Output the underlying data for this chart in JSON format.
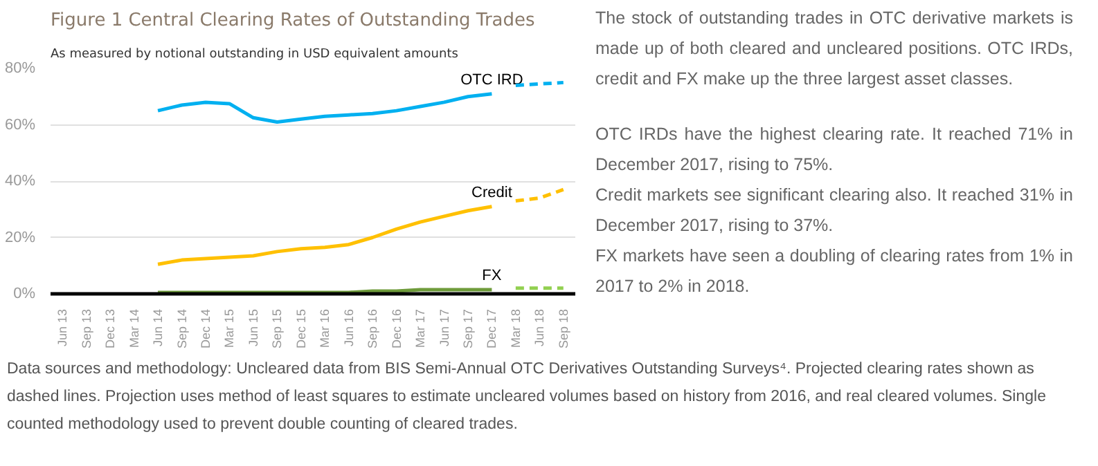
{
  "chart_data": {
    "type": "line",
    "title": "Figure 1 Central Clearing Rates of Outstanding Trades",
    "subtitle": "As measured by notional outstanding in USD equivalent amounts",
    "categories": [
      "Jun 13",
      "Sep 13",
      "Dec 13",
      "Mar 14",
      "Jun 14",
      "Sep 14",
      "Dec 14",
      "Mar 15",
      "Jun 15",
      "Sep 15",
      "Dec 15",
      "Mar 16",
      "Jun 16",
      "Sep 16",
      "Dec 16",
      "Mar 17",
      "Jun 17",
      "Sep 17",
      "Dec 17",
      "Mar 18",
      "Jun 18",
      "Sep 18"
    ],
    "series": [
      {
        "name": "OTC IRD",
        "color": "#00b0f0",
        "line_style": "solid",
        "values": [
          null,
          null,
          null,
          null,
          65,
          67,
          68,
          67.5,
          62.5,
          61,
          62,
          63,
          63.5,
          64,
          65,
          66.5,
          68,
          70,
          71,
          null,
          null,
          null
        ]
      },
      {
        "color": "#00b0f0",
        "line_style": "dashed",
        "values": [
          null,
          null,
          null,
          null,
          null,
          null,
          null,
          null,
          null,
          null,
          null,
          null,
          null,
          null,
          null,
          null,
          null,
          null,
          null,
          74,
          74.5,
          75
        ]
      },
      {
        "name": "Credit",
        "color": "#ffc000",
        "line_style": "solid",
        "values": [
          null,
          null,
          null,
          null,
          10.5,
          12,
          12.5,
          13,
          13.5,
          15,
          16,
          16.5,
          17.5,
          20,
          23,
          25.5,
          27.5,
          29.5,
          31,
          null,
          null,
          null
        ]
      },
      {
        "color": "#ffc000",
        "line_style": "dashed",
        "values": [
          null,
          null,
          null,
          null,
          null,
          null,
          null,
          null,
          null,
          null,
          null,
          null,
          null,
          null,
          null,
          null,
          null,
          null,
          null,
          33,
          34,
          37
        ]
      },
      {
        "name": "FX",
        "color": "#6e9b3a",
        "line_style": "solid",
        "values": [
          null,
          null,
          null,
          null,
          0.5,
          0.5,
          0.5,
          0.5,
          0.5,
          0.5,
          0.5,
          0.5,
          0.5,
          1,
          1,
          1.5,
          1.5,
          1.5,
          1.5,
          null,
          null,
          null
        ]
      },
      {
        "color": "#92d050",
        "line_style": "dashed",
        "values": [
          null,
          null,
          null,
          null,
          null,
          null,
          null,
          null,
          null,
          null,
          null,
          null,
          null,
          null,
          null,
          null,
          null,
          null,
          null,
          2,
          2,
          2
        ]
      }
    ],
    "ylim": [
      0,
      80
    ],
    "yticks": [
      {
        "value": 0,
        "label": "0%"
      },
      {
        "value": 20,
        "label": "20%"
      },
      {
        "value": 40,
        "label": "40%"
      },
      {
        "value": 60,
        "label": "60%"
      },
      {
        "value": 80,
        "label": "80%"
      }
    ],
    "grid": "y",
    "annotations": [
      "The stock of outstanding trades in OTC derivative markets is made up of both cleared and uncleared positions. OTC IRDs, credit and FX make up the three largest asset classes.",
      "OTC IRDs have the highest clearing rate. It reached 71% in December 2017, rising to 75%.",
      "Credit markets see significant clearing also. It reached 31% in December 2017, rising to 37%.",
      "FX markets have seen a doubling of clearing rates from 1% in 2017 to 2% in 2018.",
      "Data sources and methodology: Uncleared data from BIS Semi-Annual OTC Derivatives Outstanding Surveys⁴. Projected clearing rates shown as dashed lines. Projection uses method of least squares to estimate uncleared volumes based on history from 2016, and real cleared volumes. Single counted methodology used to prevent double counting of cleared trades."
    ]
  }
}
